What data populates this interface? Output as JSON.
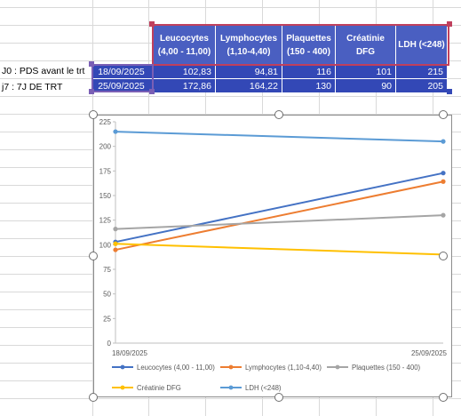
{
  "rows": [
    {
      "label": "J0 : PDS avant le trt",
      "date": "18/09/2025",
      "values": [
        "102,83",
        "94,81",
        "116",
        "101",
        "215"
      ]
    },
    {
      "label": "j7 : 7J DE TRT",
      "date": "25/09/2025",
      "values": [
        "172,86",
        "164,22",
        "130",
        "90",
        "205"
      ]
    }
  ],
  "headers": [
    {
      "line1": "Leucocytes",
      "line2": "(4,00 - 11,00)"
    },
    {
      "line1": "Lymphocytes",
      "line2": "(1,10-4,40)"
    },
    {
      "line1": "Plaquettes",
      "line2": "(150 - 400)"
    },
    {
      "line1": "Créatinie",
      "line2": "DFG"
    },
    {
      "line1": "LDH (<248)",
      "line2": ""
    }
  ],
  "colors": {
    "header": "#4a5fc1",
    "cell": "#3348b6"
  },
  "chart_data": {
    "type": "line",
    "x": [
      "18/09/2025",
      "25/09/2025"
    ],
    "ylim": [
      0,
      225
    ],
    "yticks": [
      0,
      25,
      50,
      75,
      100,
      125,
      150,
      175,
      200,
      225
    ],
    "grid": false,
    "legend_position": "bottom",
    "series": [
      {
        "name": "Leucocytes (4,00 - 11,00)",
        "values": [
          102.83,
          172.86
        ],
        "color": "#4472c4"
      },
      {
        "name": "Lymphocytes (1,10-4,40)",
        "values": [
          94.81,
          164.22
        ],
        "color": "#ed7d31"
      },
      {
        "name": "Plaquettes (150 - 400)",
        "values": [
          116,
          130
        ],
        "color": "#a5a5a5"
      },
      {
        "name": "Créatinie DFG",
        "values": [
          101,
          90
        ],
        "color": "#ffc000"
      },
      {
        "name": "LDH (<248)",
        "values": [
          215,
          205
        ],
        "color": "#5b9bd5"
      }
    ]
  }
}
